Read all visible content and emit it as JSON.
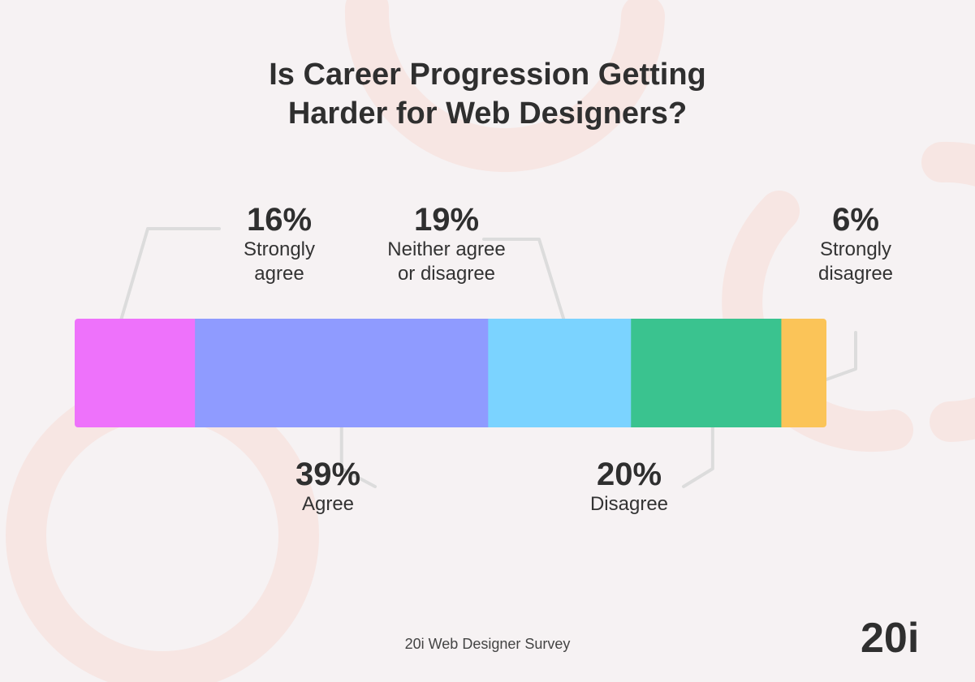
{
  "title_lines": [
    "Is Career Progression Getting",
    "Harder for Web Designers?"
  ],
  "footer": "20i Web Designer Survey",
  "logo": "20i",
  "colors": {
    "background": "#f6f2f3",
    "decor": "#f7e6e3",
    "leader": "#dcdcdc"
  },
  "chart_data": {
    "type": "bar",
    "orientation": "horizontal-stacked",
    "unit": "%",
    "title": "Is Career Progression Getting Harder for Web Designers?",
    "segments": [
      {
        "label": "Strongly agree",
        "label_lines": [
          "Strongly",
          "agree"
        ],
        "value": 16,
        "display": "16%",
        "color": "#ee72fb",
        "callout": "above"
      },
      {
        "label": "Agree",
        "label_lines": [
          "Agree"
        ],
        "value": 39,
        "display": "39%",
        "color": "#8f9bff",
        "callout": "below"
      },
      {
        "label": "Neither agree or disagree",
        "label_lines": [
          "Neither agree",
          "or disagree"
        ],
        "value": 19,
        "display": "19%",
        "color": "#7bd3ff",
        "callout": "above"
      },
      {
        "label": "Disagree",
        "label_lines": [
          "Disagree"
        ],
        "value": 20,
        "display": "20%",
        "color": "#3ac38f",
        "callout": "below"
      },
      {
        "label": "Strongly disagree",
        "label_lines": [
          "Strongly",
          "disagree"
        ],
        "value": 6,
        "display": "6%",
        "color": "#fbc458",
        "callout": "above"
      }
    ]
  }
}
